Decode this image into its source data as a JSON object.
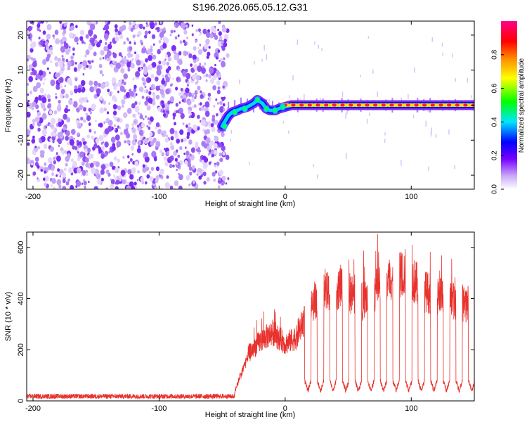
{
  "title": "S196.2026.065.05.12.G31",
  "colors": {
    "snr_line": "#e8322d",
    "scatter_base": "#7b2cf5",
    "frame": "#000000"
  },
  "chart_data": [
    {
      "type": "heatmap",
      "name": "spectrogram",
      "xlabel": "Height of straight line (km)",
      "ylabel": "Frequency (Hz)",
      "xlim": [
        -205,
        150
      ],
      "ylim": [
        -24,
        24
      ],
      "xticks": [
        -200,
        -100,
        0,
        100
      ],
      "yticks": [
        -20,
        -10,
        0,
        10,
        20
      ],
      "noise_region_x": [
        -205,
        -45
      ],
      "signal_track": {
        "x": [
          -50,
          -45,
          -42,
          -38,
          -35,
          -30,
          -25,
          -22,
          -18,
          -15,
          -12,
          -8,
          -5,
          0,
          5,
          10,
          20,
          40,
          60,
          80,
          100,
          120,
          150
        ],
        "frequency_hz": [
          -6,
          -3,
          -2,
          -1.5,
          -1,
          -0.5,
          0.5,
          1.5,
          0.5,
          -1,
          -1.5,
          -1.5,
          -1,
          -0.5,
          0,
          0,
          0,
          0,
          0,
          0,
          0,
          0,
          0
        ]
      },
      "colorbar": {
        "label": "Normalized spectral amplitude",
        "range": [
          0,
          1
        ],
        "ticks": [
          "0.0",
          "0.2",
          "0.4",
          "0.6",
          "0.8"
        ],
        "colormap": [
          "#ffffff",
          "#7700ff",
          "#0000ff",
          "#00e5ff",
          "#00ff00",
          "#ffff00",
          "#ff6600",
          "#ff0000",
          "#ff00aa"
        ]
      }
    },
    {
      "type": "line",
      "name": "snr",
      "xlabel": "Height of straight line (km)",
      "ylabel": "SNR (10 * v/v)",
      "xlim": [
        -205,
        150
      ],
      "ylim": [
        0,
        660
      ],
      "xticks": [
        -200,
        -100,
        0,
        100
      ],
      "yticks": [
        0,
        200,
        400,
        600
      ],
      "series": [
        {
          "name": "SNR",
          "segments": [
            {
              "x": [
                -205,
                -40
              ],
              "baseline": 18,
              "noise": 12
            },
            {
              "x": [
                -40,
                10
              ],
              "envelope": [
                [
                  -40,
                  40
                ],
                [
                  -30,
                  200
                ],
                [
                  -20,
                  260
                ],
                [
                  -10,
                  300
                ],
                [
                  0,
                  250
                ],
                [
                  10,
                  280
                ]
              ]
            },
            {
              "x": [
                10,
                150
              ],
              "envelope": [
                [
                  10,
                  300
                ],
                [
                  25,
                  450
                ],
                [
                  45,
                  500
                ],
                [
                  60,
                  430
                ],
                [
                  80,
                  520
                ],
                [
                  95,
                  560
                ],
                [
                  110,
                  480
                ],
                [
                  130,
                  440
                ],
                [
                  150,
                  420
                ]
              ]
            }
          ],
          "dropouts_x": [
            18,
            28,
            38,
            48,
            58,
            68,
            78,
            88,
            98,
            108,
            118,
            128,
            138,
            148
          ],
          "dropout_value": 40
        }
      ]
    }
  ]
}
